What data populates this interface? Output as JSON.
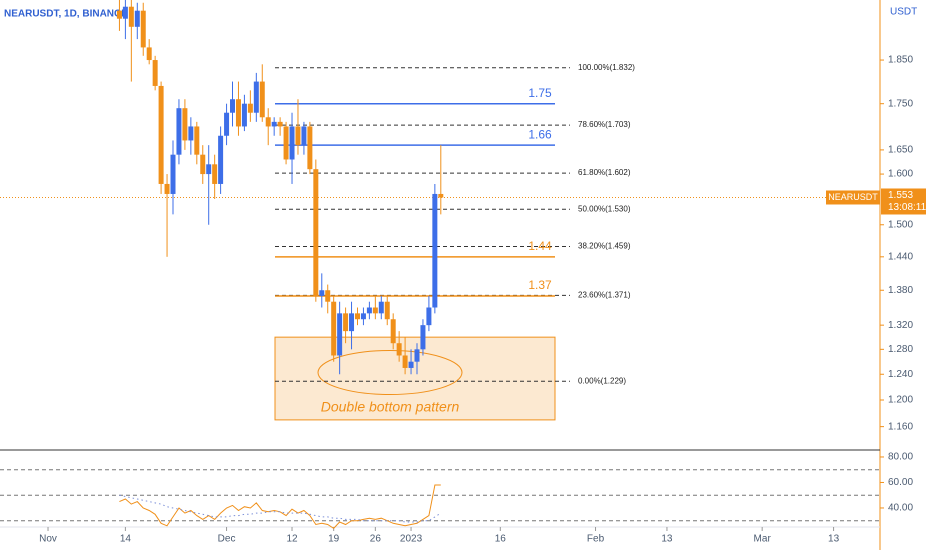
{
  "chart_data": {
    "type": "candlestick",
    "title": "NEARUSDT, 1D, BINANCE",
    "currency": "USDT",
    "log_scale": true,
    "ylim": [
      1.126,
      1.997
    ],
    "yticks": [
      {
        "value": 1.85,
        "label": "1.850"
      },
      {
        "value": 1.75,
        "label": "1.750"
      },
      {
        "value": 1.65,
        "label": "1.650"
      },
      {
        "value": 1.6,
        "label": "1.600"
      },
      {
        "value": 1.5,
        "label": "1.500"
      },
      {
        "value": 1.44,
        "label": "1.440"
      },
      {
        "value": 1.38,
        "label": "1.380"
      },
      {
        "value": 1.32,
        "label": "1.320"
      },
      {
        "value": 1.28,
        "label": "1.280"
      },
      {
        "value": 1.24,
        "label": "1.240"
      },
      {
        "value": 1.2,
        "label": "1.200"
      },
      {
        "value": 1.16,
        "label": "1.160"
      }
    ],
    "xlim": [
      -8.07,
      139.8
    ],
    "xticks": [
      {
        "value": 0,
        "label": "Nov"
      },
      {
        "value": 13,
        "label": "14"
      },
      {
        "value": 30,
        "label": "Dec"
      },
      {
        "value": 41,
        "label": "12"
      },
      {
        "value": 48,
        "label": "19"
      },
      {
        "value": 55,
        "label": "26"
      },
      {
        "value": 61,
        "label": "2023"
      },
      {
        "value": 76,
        "label": "16"
      },
      {
        "value": 92,
        "label": "Feb"
      },
      {
        "value": 104,
        "label": "13"
      },
      {
        "value": 120,
        "label": "Mar"
      },
      {
        "value": 132,
        "label": "13"
      }
    ],
    "up_color": "#3d6ee8",
    "down_color": "#f0901a",
    "open": [
      1.97,
      1.95,
      1.98,
      1.93,
      1.97,
      1.88,
      1.85,
      1.79,
      1.58,
      1.56,
      1.64,
      1.74,
      1.67,
      1.7,
      1.64,
      1.6,
      1.62,
      1.58,
      1.68,
      1.73,
      1.76,
      1.7,
      1.75,
      1.73,
      1.8,
      1.72,
      1.7,
      1.71,
      1.7,
      1.63,
      1.7,
      1.66,
      1.7,
      1.61,
      1.37,
      1.38,
      1.36,
      1.27,
      1.34,
      1.31,
      1.34,
      1.33,
      1.34,
      1.35,
      1.34,
      1.36,
      1.33,
      1.29,
      1.27,
      1.25,
      1.26,
      1.28,
      1.32,
      1.35,
      1.56
    ],
    "high": [
      2.0,
      2.0,
      2.0,
      1.99,
      1.99,
      1.9,
      1.86,
      1.8,
      1.6,
      1.67,
      1.76,
      1.76,
      1.72,
      1.71,
      1.66,
      1.66,
      1.64,
      1.7,
      1.75,
      1.8,
      1.8,
      1.77,
      1.78,
      1.82,
      1.84,
      1.74,
      1.72,
      1.72,
      1.71,
      1.73,
      1.76,
      1.71,
      1.71,
      1.63,
      1.41,
      1.39,
      1.37,
      1.36,
      1.35,
      1.36,
      1.35,
      1.35,
      1.36,
      1.37,
      1.37,
      1.37,
      1.34,
      1.31,
      1.3,
      1.28,
      1.29,
      1.33,
      1.37,
      1.58,
      1.66
    ],
    "low": [
      1.92,
      1.9,
      1.8,
      1.9,
      1.86,
      1.84,
      1.78,
      1.56,
      1.44,
      1.52,
      1.62,
      1.65,
      1.64,
      1.62,
      1.58,
      1.5,
      1.55,
      1.56,
      1.66,
      1.7,
      1.68,
      1.69,
      1.71,
      1.71,
      1.71,
      1.66,
      1.68,
      1.68,
      1.62,
      1.58,
      1.64,
      1.64,
      1.6,
      1.36,
      1.35,
      1.34,
      1.26,
      1.24,
      1.29,
      1.28,
      1.32,
      1.32,
      1.33,
      1.33,
      1.33,
      1.32,
      1.28,
      1.26,
      1.24,
      1.24,
      1.24,
      1.27,
      1.31,
      1.34,
      1.52
    ],
    "close": [
      1.95,
      1.98,
      1.93,
      1.97,
      1.88,
      1.85,
      1.79,
      1.58,
      1.56,
      1.64,
      1.74,
      1.67,
      1.7,
      1.64,
      1.6,
      1.62,
      1.58,
      1.68,
      1.73,
      1.76,
      1.7,
      1.75,
      1.73,
      1.8,
      1.72,
      1.7,
      1.71,
      1.7,
      1.63,
      1.7,
      1.66,
      1.7,
      1.61,
      1.37,
      1.38,
      1.36,
      1.27,
      1.34,
      1.31,
      1.34,
      1.33,
      1.34,
      1.35,
      1.34,
      1.36,
      1.33,
      1.29,
      1.27,
      1.25,
      1.26,
      1.28,
      1.32,
      1.35,
      1.56,
      1.553
    ],
    "current_price": {
      "name": "NEARUSDT",
      "value": 1.553,
      "countdown": "13:08:11",
      "color": "#f0901a"
    },
    "fib_levels": [
      {
        "label": "100.00%(1.832)",
        "value": 1.832
      },
      {
        "label": "78.60%(1.703)",
        "value": 1.703
      },
      {
        "label": "61.80%(1.602)",
        "value": 1.602
      },
      {
        "label": "50.00%(1.530)",
        "value": 1.53
      },
      {
        "label": "38.20%(1.459)",
        "value": 1.459
      },
      {
        "label": "23.60%(1.371)",
        "value": 1.371
      },
      {
        "label": "0.00%(1.229)",
        "value": 1.229
      }
    ],
    "levels": [
      {
        "value": 1.75,
        "color": "#3d6ee8"
      },
      {
        "value": 1.66,
        "color": "#3d6ee8"
      },
      {
        "value": 1.44,
        "color": "#f0901a"
      },
      {
        "value": 1.37,
        "color": "#f0901a"
      }
    ],
    "zone": {
      "label": "Double bottom pattern",
      "top": 1.3,
      "bottom": 1.17,
      "color": "#f0901a"
    },
    "rsi": {
      "ylim": [
        8.6,
        83.9
      ],
      "yticks": [
        {
          "value": 80,
          "label": "80.00"
        },
        {
          "value": 60,
          "label": "60.00"
        },
        {
          "value": 40,
          "label": "40.00"
        }
      ],
      "levels": [
        70,
        50,
        30
      ],
      "series": [
        {
          "color": "#f0901a",
          "values": [
            45,
            47,
            43,
            45,
            40,
            38,
            35,
            28,
            26,
            33,
            40,
            36,
            38,
            34,
            31,
            34,
            31,
            36,
            40,
            42,
            38,
            41,
            40,
            44,
            38,
            37,
            38,
            37,
            34,
            39,
            36,
            38,
            34,
            27,
            28,
            27,
            24,
            29,
            27,
            30,
            30,
            31,
            32,
            31,
            32,
            30,
            28,
            27,
            26,
            27,
            28,
            31,
            34,
            58,
            58
          ]
        },
        {
          "color": "#7b8fd8",
          "dotted": true,
          "values": [
            50,
            49,
            48,
            47,
            46,
            45,
            44,
            43,
            41,
            40,
            39,
            38,
            37,
            36,
            35,
            34,
            33,
            33,
            33,
            34,
            34,
            35,
            35,
            36,
            36,
            37,
            37,
            37,
            36,
            36,
            36,
            36,
            35,
            34,
            33,
            33,
            32,
            32,
            31,
            31,
            31,
            30,
            30,
            30,
            30,
            30,
            30,
            30,
            29,
            29,
            29,
            30,
            30,
            33,
            36
          ]
        }
      ]
    }
  }
}
